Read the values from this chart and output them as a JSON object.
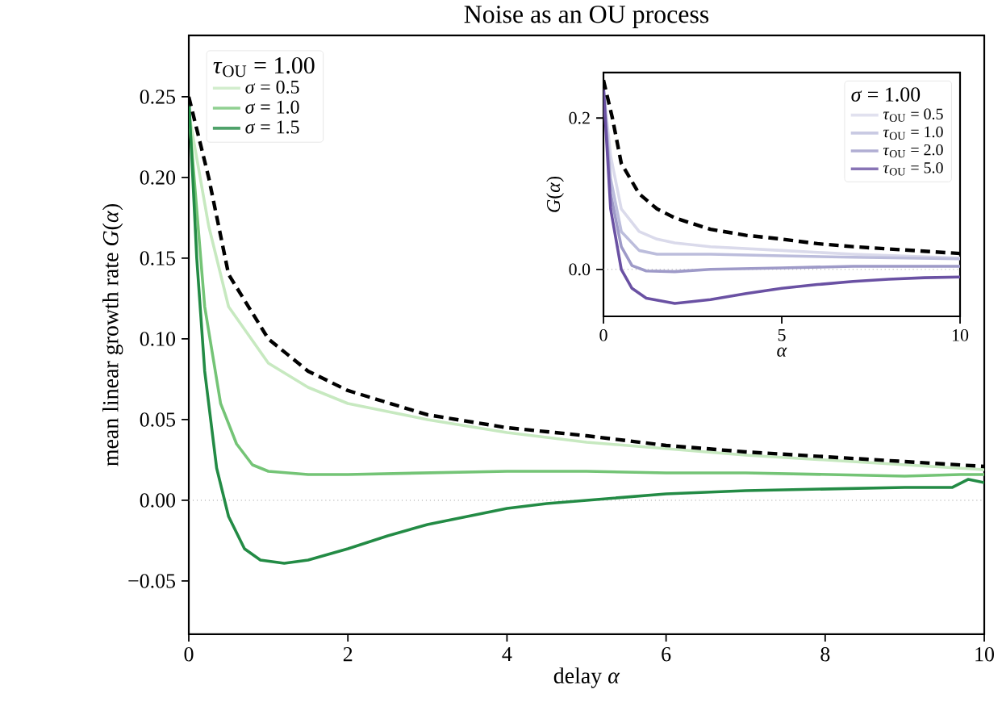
{
  "chart_data": [
    {
      "type": "line",
      "title": "Noise as an OU process",
      "xlabel": "delay *α*",
      "ylabel": "mean linear growth rate *G*(*α*)",
      "legend_title": "*τ*$_{OU}$ = 1.00",
      "legend": "top left",
      "xlim": [
        0,
        10
      ],
      "ylim": [
        -0.083,
        0.288
      ],
      "xticks": [
        0,
        2,
        4,
        6,
        8,
        10
      ],
      "yticks": [
        {
          "value": -0.05,
          "label": "−0.05"
        },
        {
          "value": 0,
          "label": "0.00"
        },
        {
          "value": 0.05,
          "label": "0.05"
        },
        {
          "value": 0.1,
          "label": "0.10"
        },
        {
          "value": 0.15,
          "label": "0.15"
        },
        {
          "value": 0.2,
          "label": "0.20"
        },
        {
          "value": 0.25,
          "label": "0.25"
        }
      ],
      "ref_lines": [
        {
          "axis": "y",
          "value": 0,
          "color": "#999999",
          "line_style": "dotted"
        }
      ],
      "series": [
        {
          "name": "*σ* = 0.5",
          "color": "#c7e9c0",
          "x": [
            0,
            0.25,
            0.5,
            1,
            1.5,
            2,
            3,
            4,
            5,
            6,
            7,
            8,
            9,
            10
          ],
          "values": [
            0.24,
            0.17,
            0.12,
            0.085,
            0.07,
            0.06,
            0.05,
            0.042,
            0.036,
            0.032,
            0.028,
            0.025,
            0.022,
            0.019
          ]
        },
        {
          "name": "*σ* = 1.0",
          "color": "#74c476",
          "x": [
            0,
            0.2,
            0.4,
            0.6,
            0.8,
            1,
            1.5,
            2,
            3,
            4,
            5,
            6,
            7,
            8,
            9,
            9.7,
            10
          ],
          "values": [
            0.24,
            0.12,
            0.06,
            0.035,
            0.022,
            0.018,
            0.016,
            0.016,
            0.017,
            0.018,
            0.018,
            0.017,
            0.017,
            0.016,
            0.015,
            0.016,
            0.016
          ]
        },
        {
          "name": "*σ* = 1.5",
          "color": "#238b45",
          "x": [
            0,
            0.1,
            0.2,
            0.35,
            0.5,
            0.7,
            0.9,
            1.2,
            1.5,
            2,
            2.5,
            3,
            3.5,
            4,
            4.5,
            5,
            6,
            7,
            8,
            9,
            9.6,
            9.8,
            10
          ],
          "values": [
            0.25,
            0.15,
            0.08,
            0.02,
            -0.01,
            -0.03,
            -0.037,
            -0.039,
            -0.037,
            -0.03,
            -0.022,
            -0.015,
            -0.01,
            -0.005,
            -0.002,
            0.0,
            0.004,
            0.006,
            0.007,
            0.008,
            0.008,
            0.013,
            0.011
          ]
        },
        {
          "color": "#000000",
          "line_style": "dashed",
          "x": [
            0,
            0.25,
            0.5,
            1,
            1.5,
            2,
            3,
            4,
            5,
            6,
            7,
            8,
            9,
            10
          ],
          "values": [
            0.25,
            0.2,
            0.14,
            0.1,
            0.08,
            0.068,
            0.053,
            0.045,
            0.04,
            0.034,
            0.03,
            0.027,
            0.024,
            0.021
          ]
        }
      ]
    },
    {
      "type": "line",
      "xlabel": "*α*",
      "ylabel": "*G*(*α*)",
      "legend_title": "*σ* = 1.00",
      "legend": "top right",
      "xlim": [
        0,
        10
      ],
      "ylim": [
        -0.062,
        0.26
      ],
      "xticks": [
        0,
        5,
        10
      ],
      "yticks": [
        {
          "value": 0,
          "label": "0.0"
        },
        {
          "value": 0.2,
          "label": "0.2"
        }
      ],
      "ref_lines": [
        {
          "axis": "y",
          "value": 0,
          "color": "#999999",
          "line_style": "dotted"
        }
      ],
      "series": [
        {
          "name": "*τ*$_{OU}$ = 0.5",
          "color": "#dadaeb",
          "x": [
            0,
            0.2,
            0.5,
            1,
            1.5,
            2,
            3,
            5,
            7,
            10
          ],
          "values": [
            0.24,
            0.15,
            0.08,
            0.05,
            0.04,
            0.035,
            0.03,
            0.025,
            0.02,
            0.015
          ]
        },
        {
          "name": "*τ*$_{OU}$ = 1.0",
          "color": "#bcbddc",
          "x": [
            0,
            0.2,
            0.5,
            1,
            1.5,
            2,
            3,
            5,
            7,
            10
          ],
          "values": [
            0.24,
            0.12,
            0.05,
            0.025,
            0.02,
            0.02,
            0.02,
            0.018,
            0.016,
            0.014
          ]
        },
        {
          "name": "*τ*$_{OU}$ = 2.0",
          "color": "#9e9ac8",
          "x": [
            0,
            0.2,
            0.5,
            0.8,
            1.2,
            2,
            3,
            5,
            7,
            10
          ],
          "values": [
            0.24,
            0.1,
            0.03,
            0.005,
            -0.002,
            -0.003,
            0.0,
            0.002,
            0.004,
            0.004
          ]
        },
        {
          "name": "*τ*$_{OU}$ = 5.0",
          "color": "#6a51a3",
          "x": [
            0,
            0.2,
            0.5,
            0.8,
            1.2,
            2,
            3,
            4,
            5,
            6,
            7,
            8,
            9,
            10
          ],
          "values": [
            0.24,
            0.08,
            0.0,
            -0.025,
            -0.038,
            -0.045,
            -0.04,
            -0.032,
            -0.025,
            -0.02,
            -0.016,
            -0.013,
            -0.011,
            -0.01
          ]
        },
        {
          "color": "#000000",
          "line_style": "dashed",
          "x": [
            0,
            0.25,
            0.5,
            1,
            1.5,
            2,
            3,
            4,
            5,
            6,
            7,
            8,
            9,
            10
          ],
          "values": [
            0.25,
            0.2,
            0.14,
            0.1,
            0.08,
            0.068,
            0.053,
            0.045,
            0.04,
            0.034,
            0.03,
            0.027,
            0.024,
            0.021
          ]
        }
      ]
    }
  ]
}
